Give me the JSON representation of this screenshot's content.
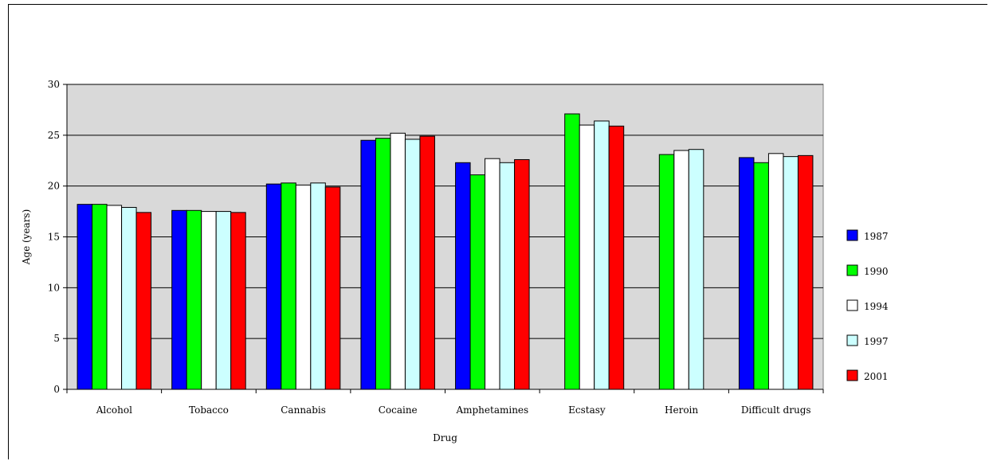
{
  "chart_data": {
    "type": "bar",
    "title": "",
    "xlabel": "Drug",
    "ylabel": "Age (years)",
    "ylim": [
      0,
      30
    ],
    "yticks": [
      0,
      5,
      10,
      15,
      20,
      25,
      30
    ],
    "grid": true,
    "legend_position": "right",
    "categories": [
      "Alcohol",
      "Tobacco",
      "Cannabis",
      "Cocaine",
      "Amphetamines",
      "Ecstasy",
      "Heroin",
      "Difficult drugs"
    ],
    "series": [
      {
        "name": "1987",
        "color": "#0000ff",
        "values": [
          18.2,
          17.6,
          20.2,
          24.5,
          22.3,
          null,
          null,
          22.8
        ]
      },
      {
        "name": "1990",
        "color": "#00ff00",
        "values": [
          18.2,
          17.6,
          20.3,
          24.7,
          21.1,
          27.1,
          23.1,
          22.3
        ]
      },
      {
        "name": "1994",
        "color": "#ffffff",
        "values": [
          18.1,
          17.5,
          20.1,
          25.2,
          22.7,
          26.0,
          23.5,
          23.2
        ]
      },
      {
        "name": "1997",
        "color": "#ccffff",
        "values": [
          17.9,
          17.5,
          20.3,
          24.6,
          22.3,
          26.4,
          23.6,
          22.9
        ]
      },
      {
        "name": "2001",
        "color": "#ff0000",
        "values": [
          17.4,
          17.4,
          19.9,
          24.9,
          22.6,
          25.9,
          null,
          23.0
        ]
      }
    ]
  }
}
